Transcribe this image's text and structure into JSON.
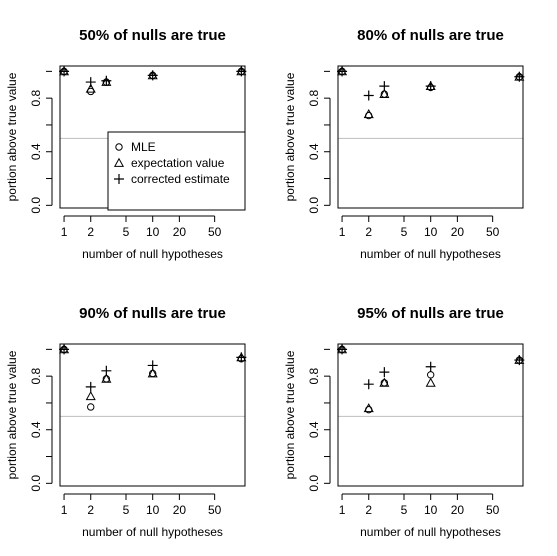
{
  "chart_data": [
    {
      "type": "scatter",
      "title": "50% of nulls are true",
      "xlabel": "number of null hypotheses",
      "ylabel": "portion above true value",
      "x_scale": "log",
      "x_ticks": [
        1,
        2,
        5,
        10,
        20,
        50
      ],
      "y_ticks": [
        "0.0",
        "0.4",
        "0.8"
      ],
      "y_tick_values": [
        0.0,
        0.4,
        0.8
      ],
      "ylim": [
        -0.02,
        1.04
      ],
      "hline": 0.5,
      "legend": {
        "position": "bottom-right",
        "entries": [
          "MLE",
          "expectation value",
          "corrected estimate"
        ]
      },
      "series": [
        {
          "symbol": "circle",
          "x": [
            1,
            2,
            3,
            10,
            100
          ],
          "values": [
            1.0,
            0.85,
            0.92,
            0.97,
            1.0
          ]
        },
        {
          "symbol": "triangle",
          "x": [
            1,
            2,
            3,
            10,
            100
          ],
          "values": [
            1.0,
            0.87,
            0.92,
            0.97,
            1.0
          ]
        },
        {
          "symbol": "plus",
          "x": [
            1,
            2,
            3,
            10,
            100
          ],
          "values": [
            1.0,
            0.92,
            0.93,
            0.97,
            1.0
          ]
        }
      ]
    },
    {
      "type": "scatter",
      "title": "80% of nulls are true",
      "xlabel": "number of null hypotheses",
      "ylabel": "portion above true value",
      "x_scale": "log",
      "x_ticks": [
        1,
        2,
        5,
        10,
        20,
        50
      ],
      "y_ticks": [
        "0.0",
        "0.4",
        "0.8"
      ],
      "y_tick_values": [
        0.0,
        0.4,
        0.8
      ],
      "ylim": [
        -0.02,
        1.04
      ],
      "hline": 0.5,
      "series": [
        {
          "symbol": "circle",
          "x": [
            1,
            2,
            3,
            10,
            100
          ],
          "values": [
            1.0,
            0.67,
            0.83,
            0.88,
            0.96
          ]
        },
        {
          "symbol": "triangle",
          "x": [
            1,
            2,
            3,
            10,
            100
          ],
          "values": [
            1.0,
            0.68,
            0.83,
            0.89,
            0.96
          ]
        },
        {
          "symbol": "plus",
          "x": [
            1,
            2,
            3,
            10,
            100
          ],
          "values": [
            1.0,
            0.82,
            0.89,
            0.89,
            0.96
          ]
        }
      ]
    },
    {
      "type": "scatter",
      "title": "90% of nulls are true",
      "xlabel": "number of null hypotheses",
      "ylabel": "portion above true value",
      "x_scale": "log",
      "x_ticks": [
        1,
        2,
        5,
        10,
        20,
        50
      ],
      "y_ticks": [
        "0.0",
        "0.4",
        "0.8"
      ],
      "y_tick_values": [
        0.0,
        0.4,
        0.8
      ],
      "ylim": [
        -0.02,
        1.04
      ],
      "hline": 0.5,
      "series": [
        {
          "symbol": "circle",
          "x": [
            1,
            2,
            3,
            10,
            100
          ],
          "values": [
            1.0,
            0.57,
            0.78,
            0.82,
            0.93
          ]
        },
        {
          "symbol": "triangle",
          "x": [
            1,
            2,
            3,
            10,
            100
          ],
          "values": [
            1.0,
            0.65,
            0.78,
            0.82,
            0.94
          ]
        },
        {
          "symbol": "plus",
          "x": [
            1,
            2,
            3,
            10,
            100
          ],
          "values": [
            1.0,
            0.72,
            0.84,
            0.88,
            0.94
          ]
        }
      ]
    },
    {
      "type": "scatter",
      "title": "95% of nulls are true",
      "xlabel": "number of null hypotheses",
      "ylabel": "portion above true value",
      "x_scale": "log",
      "x_ticks": [
        1,
        2,
        5,
        10,
        20,
        50
      ],
      "y_ticks": [
        "0.0",
        "0.4",
        "0.8"
      ],
      "y_tick_values": [
        0.0,
        0.4,
        0.8
      ],
      "ylim": [
        -0.02,
        1.04
      ],
      "hline": 0.5,
      "series": [
        {
          "symbol": "circle",
          "x": [
            1,
            2,
            3,
            10,
            100
          ],
          "values": [
            1.0,
            0.55,
            0.75,
            0.81,
            0.92
          ]
        },
        {
          "symbol": "triangle",
          "x": [
            1,
            2,
            3,
            10,
            100
          ],
          "values": [
            1.0,
            0.56,
            0.75,
            0.75,
            0.92
          ]
        },
        {
          "symbol": "plus",
          "x": [
            1,
            2,
            3,
            10,
            100
          ],
          "values": [
            1.0,
            0.74,
            0.83,
            0.87,
            0.92
          ]
        }
      ]
    }
  ]
}
